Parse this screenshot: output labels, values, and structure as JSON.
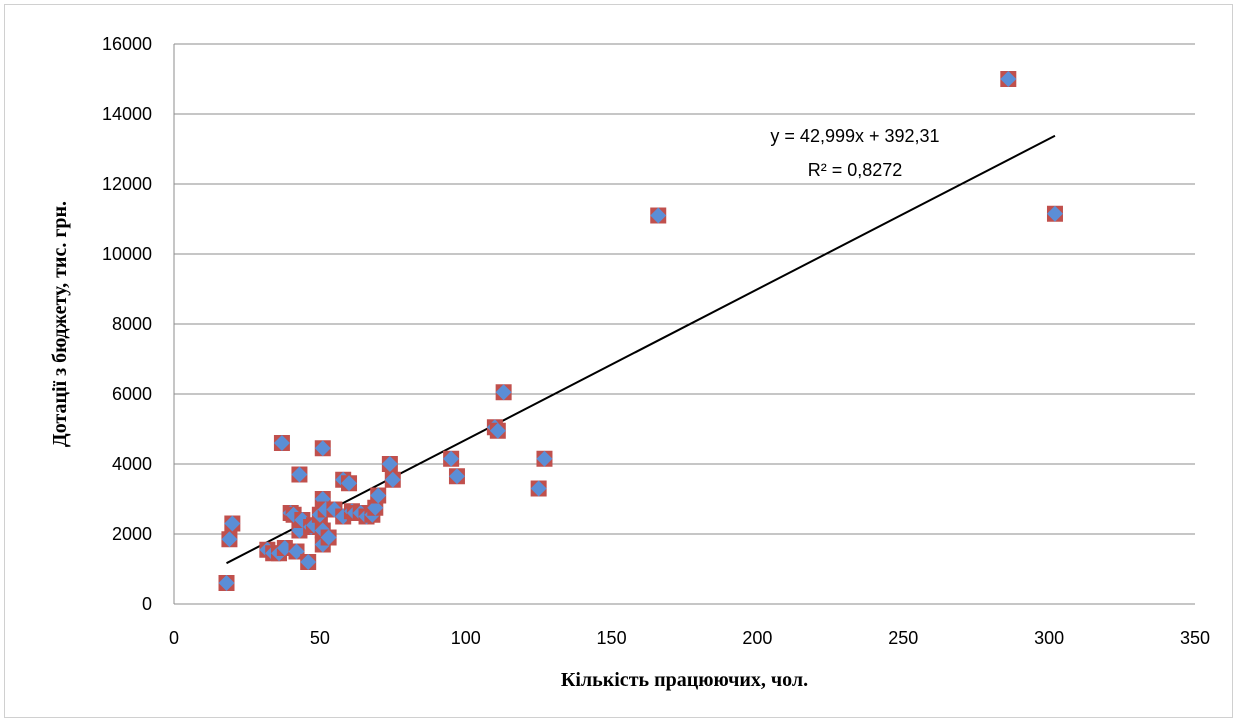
{
  "chart_data": {
    "type": "scatter",
    "title": "",
    "xlabel": "Кількість працюючих, чол.",
    "ylabel": "Дотації з бюджету, тис. грн.",
    "xlim": [
      0,
      350
    ],
    "ylim": [
      0,
      16000
    ],
    "x_ticks": [
      0,
      50,
      100,
      150,
      200,
      250,
      300,
      350
    ],
    "y_ticks": [
      0,
      2000,
      4000,
      6000,
      8000,
      10000,
      12000,
      14000,
      16000
    ],
    "grid": "horizontal",
    "legend": "none",
    "marker_fill": "#5b8ed6",
    "marker_edge": "#c0504d",
    "trend_color": "#000000",
    "trendline": {
      "type": "linear",
      "slope": 42.999,
      "intercept": 392.31,
      "x_range": [
        18,
        302
      ],
      "equation_label": "y = 42,999x + 392,31",
      "r2_label": "R² = 0,8272"
    },
    "points": [
      {
        "x": 18,
        "y": 600
      },
      {
        "x": 19,
        "y": 1850
      },
      {
        "x": 20,
        "y": 2300
      },
      {
        "x": 32,
        "y": 1550
      },
      {
        "x": 34,
        "y": 1450
      },
      {
        "x": 36,
        "y": 1450
      },
      {
        "x": 37,
        "y": 4600
      },
      {
        "x": 38,
        "y": 1600
      },
      {
        "x": 40,
        "y": 2600
      },
      {
        "x": 41,
        "y": 2550
      },
      {
        "x": 42,
        "y": 1500
      },
      {
        "x": 43,
        "y": 2100
      },
      {
        "x": 43,
        "y": 3700
      },
      {
        "x": 44,
        "y": 2400
      },
      {
        "x": 46,
        "y": 1200
      },
      {
        "x": 47,
        "y": 2200
      },
      {
        "x": 48,
        "y": 2250
      },
      {
        "x": 50,
        "y": 2550
      },
      {
        "x": 51,
        "y": 1700
      },
      {
        "x": 51,
        "y": 2100
      },
      {
        "x": 51,
        "y": 3000
      },
      {
        "x": 51,
        "y": 4450
      },
      {
        "x": 52,
        "y": 2700
      },
      {
        "x": 53,
        "y": 1900
      },
      {
        "x": 55,
        "y": 2700
      },
      {
        "x": 58,
        "y": 2500
      },
      {
        "x": 58,
        "y": 3550
      },
      {
        "x": 60,
        "y": 3450
      },
      {
        "x": 61,
        "y": 2650
      },
      {
        "x": 62,
        "y": 2600
      },
      {
        "x": 64,
        "y": 2600
      },
      {
        "x": 66,
        "y": 2500
      },
      {
        "x": 68,
        "y": 2550
      },
      {
        "x": 69,
        "y": 2750
      },
      {
        "x": 70,
        "y": 3100
      },
      {
        "x": 74,
        "y": 4000
      },
      {
        "x": 75,
        "y": 3550
      },
      {
        "x": 95,
        "y": 4150
      },
      {
        "x": 97,
        "y": 3650
      },
      {
        "x": 110,
        "y": 5050
      },
      {
        "x": 111,
        "y": 4950
      },
      {
        "x": 113,
        "y": 6050
      },
      {
        "x": 125,
        "y": 3300
      },
      {
        "x": 127,
        "y": 4150
      },
      {
        "x": 166,
        "y": 11100
      },
      {
        "x": 286,
        "y": 15000
      },
      {
        "x": 302,
        "y": 11150
      }
    ]
  }
}
